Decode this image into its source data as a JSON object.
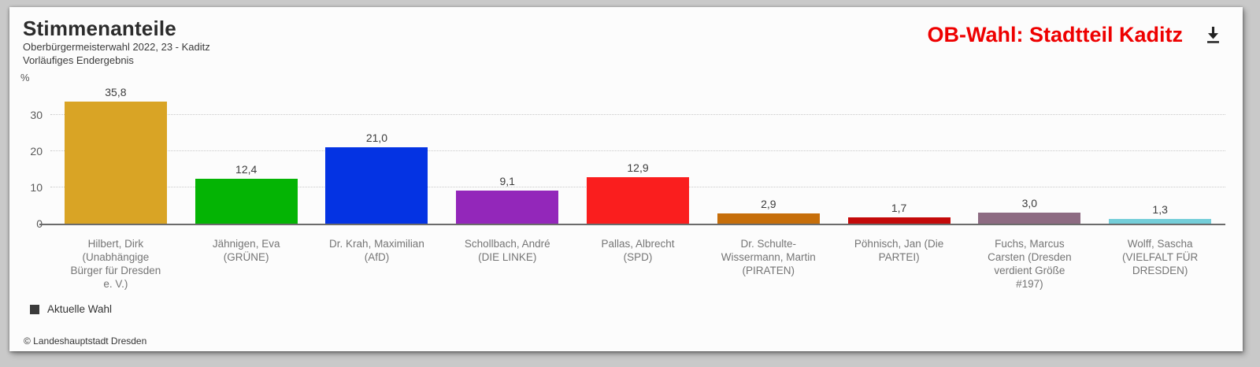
{
  "header": {
    "widget_title": "OB-Wahl: Stadtteil Kaditz",
    "widget_title_color": "#ee0000",
    "icons": {
      "download": "arrow-down-to-bar"
    }
  },
  "chart_data": {
    "type": "bar",
    "title": "Stimmenanteile",
    "subtitle_lines": [
      "Oberbürgermeisterwahl 2022, 23 - Kaditz",
      "Vorläufiges Endergebnis"
    ],
    "unit_label": "%",
    "categories": [
      "Hilbert, Dirk (Unabhängige Bürger für Dresden e. V.)",
      "Jähnigen, Eva (GRÜNE)",
      "Dr. Krah, Maximilian (AfD)",
      "Schollbach, André (DIE LINKE)",
      "Pallas, Albrecht (SPD)",
      "Dr. Schulte-Wissermann, Martin (PIRATEN)",
      "Pöhnisch, Jan (Die PARTEI)",
      "Fuchs, Marcus Carsten (Dresden verdient Größe #197)",
      "Wolff, Sascha (VIELFALT FÜR DRESDEN)"
    ],
    "values": [
      35.8,
      12.4,
      21.0,
      9.1,
      12.9,
      2.9,
      1.7,
      3.0,
      1.3
    ],
    "value_labels": [
      "35,8",
      "12,4",
      "21,0",
      "9,1",
      "12,9",
      "2,9",
      "1,7",
      "3,0",
      "1,3"
    ],
    "bar_colors": [
      "#d9a425",
      "#04b404",
      "#0433e3",
      "#9327ba",
      "#fa1e1e",
      "#c66e0a",
      "#c40a0a",
      "#8d6b82",
      "#74ced9"
    ],
    "y_ticks": [
      0,
      10,
      20,
      30
    ],
    "ylim": [
      0,
      38
    ],
    "grid": "horizontal-dotted",
    "legend": [
      {
        "label": "Aktuelle Wahl",
        "color": "#3b3b3b"
      }
    ],
    "legend_position": "bottom-left"
  },
  "footer": {
    "copyright": "© Landeshauptstadt Dresden"
  }
}
